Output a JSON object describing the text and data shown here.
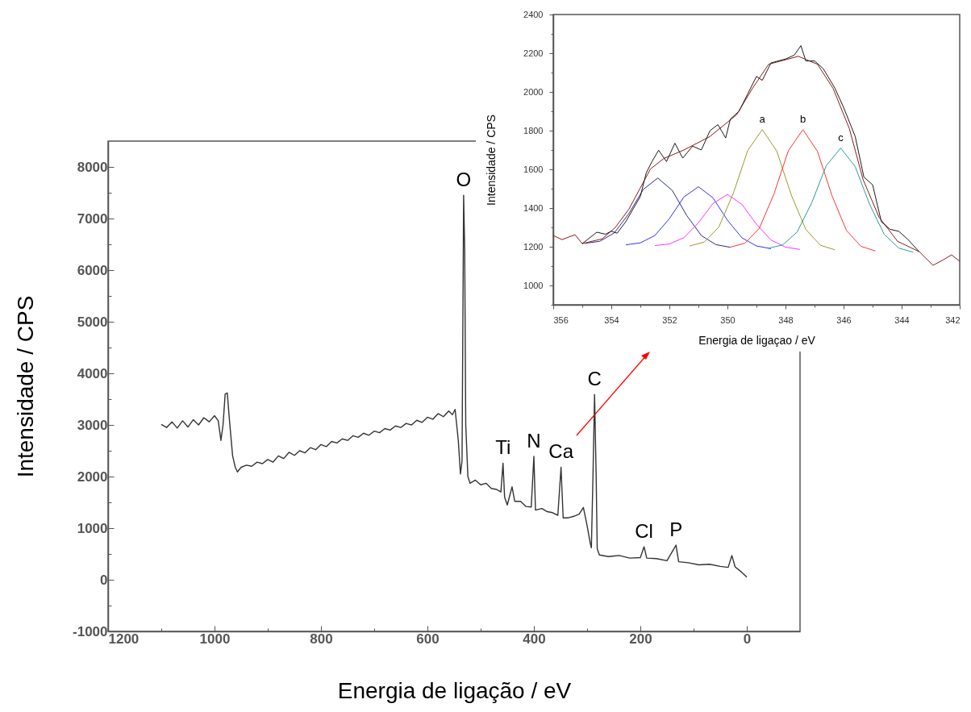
{
  "chart_data": [
    {
      "type": "line",
      "xlabel": "Energia de ligação / eV",
      "ylabel": "Intensidade / CPS",
      "xlim": [
        1200,
        -100
      ],
      "ylim": [
        -1000,
        8500
      ],
      "xticks": [
        1200,
        {
          "value": 1100,
          "label": null
        },
        1000,
        {
          "value": 900,
          "label": null
        },
        800,
        {
          "value": 700,
          "label": null
        },
        600,
        {
          "value": 500,
          "label": null
        },
        400,
        {
          "value": 300,
          "label": null
        },
        200,
        {
          "value": 100,
          "label": null
        },
        0
      ],
      "yticks": [
        -1000,
        {
          "value": -500,
          "label": null
        },
        0,
        {
          "value": 500,
          "label": null
        },
        1000,
        {
          "value": 1500,
          "label": null
        },
        2000,
        {
          "value": 2500,
          "label": null
        },
        3000,
        {
          "value": 3500,
          "label": null
        },
        4000,
        {
          "value": 4500,
          "label": null
        },
        5000,
        {
          "value": 5500,
          "label": null
        },
        6000,
        {
          "value": 6500,
          "label": null
        },
        7000,
        {
          "value": 7500,
          "label": null
        },
        8000
      ],
      "annotations": [
        {
          "text": "O",
          "x": 532,
          "y": 7450
        },
        {
          "text": "Ti",
          "x": 458,
          "y": 2260
        },
        {
          "text": "N",
          "x": 400,
          "y": 2390
        },
        {
          "text": "Ca",
          "x": 349,
          "y": 2180
        },
        {
          "text": "C",
          "x": 286,
          "y": 3590
        },
        {
          "text": "Cl",
          "x": 193,
          "y": 640
        },
        {
          "text": "P",
          "x": 133,
          "y": 670
        }
      ],
      "series": [
        {
          "color": "#333333",
          "x": [
            1100,
            1090,
            1080,
            1070,
            1060,
            1050,
            1040,
            1030,
            1020,
            1010,
            1000,
            993,
            988,
            984,
            980,
            976,
            972,
            966,
            961,
            957,
            950,
            940,
            930,
            920,
            910,
            900,
            890,
            880,
            870,
            860,
            850,
            840,
            830,
            820,
            810,
            800,
            790,
            780,
            770,
            760,
            750,
            740,
            730,
            720,
            710,
            700,
            690,
            680,
            670,
            660,
            650,
            640,
            630,
            620,
            610,
            600,
            590,
            580,
            570,
            560,
            553,
            548,
            542,
            538,
            535,
            533,
            532,
            530,
            528,
            524,
            520,
            510,
            500,
            490,
            480,
            470,
            462,
            458,
            455,
            450,
            441,
            436,
            425,
            415,
            405,
            400,
            397,
            385,
            375,
            365,
            355,
            349,
            345,
            335,
            325,
            315,
            307,
            300,
            294,
            292,
            289,
            286,
            283,
            281,
            277,
            260,
            240,
            220,
            200,
            193,
            188,
            170,
            150,
            133,
            128,
            110,
            90,
            70,
            50,
            35,
            28,
            22,
            10,
            0
          ],
          "values": [
            3010,
            2950,
            3060,
            2940,
            3080,
            2960,
            3100,
            3000,
            3140,
            3060,
            3180,
            3080,
            2700,
            3000,
            3600,
            3620,
            3100,
            2400,
            2180,
            2090,
            2180,
            2220,
            2200,
            2280,
            2250,
            2330,
            2280,
            2400,
            2350,
            2470,
            2410,
            2500,
            2460,
            2560,
            2520,
            2620,
            2580,
            2680,
            2650,
            2730,
            2700,
            2790,
            2760,
            2840,
            2800,
            2880,
            2850,
            2930,
            2900,
            2980,
            2950,
            3030,
            3000,
            3090,
            3050,
            3150,
            3110,
            3220,
            3160,
            3270,
            3200,
            3300,
            2700,
            2050,
            2300,
            5700,
            7450,
            6400,
            3000,
            2000,
            1870,
            1930,
            1840,
            1870,
            1770,
            1750,
            1700,
            2260,
            1600,
            1450,
            1800,
            1520,
            1520,
            1420,
            1410,
            2390,
            1350,
            1380,
            1320,
            1300,
            1250,
            2180,
            1200,
            1200,
            1230,
            1270,
            1400,
            1050,
            700,
            620,
            2000,
            3590,
            2000,
            600,
            480,
            450,
            470,
            420,
            430,
            640,
            420,
            410,
            370,
            670,
            350,
            330,
            290,
            300,
            260,
            240,
            470,
            250,
            150,
            50
          ]
        }
      ]
    },
    {
      "type": "line",
      "xlabel": "Energia de ligaçao / eV",
      "ylabel": "Intensidade / CPS",
      "xlim": [
        356,
        342
      ],
      "ylim": [
        900,
        2400
      ],
      "xticks": [
        356,
        {
          "value": 355,
          "label": null
        },
        354,
        {
          "value": 353,
          "label": null
        },
        352,
        {
          "value": 351,
          "label": null
        },
        350,
        {
          "value": 349,
          "label": null
        },
        348,
        {
          "value": 347,
          "label": null
        },
        346,
        {
          "value": 345,
          "label": null
        },
        344,
        {
          "value": 343,
          "label": null
        },
        342
      ],
      "yticks": [
        {
          "value": 900,
          "label": null
        },
        1000,
        {
          "value": 1100,
          "label": null
        },
        1200,
        {
          "value": 1300,
          "label": null
        },
        1400,
        {
          "value": 1500,
          "label": null
        },
        1600,
        {
          "value": 1700,
          "label": null
        },
        1800,
        {
          "value": 1900,
          "label": null
        },
        2000,
        {
          "value": 2100,
          "label": null
        },
        2200,
        {
          "value": 2300,
          "label": null
        },
        2400
      ],
      "annotations": [
        {
          "text": "a",
          "x": 348.8,
          "y": 1805
        },
        {
          "text": "b",
          "x": 347.4,
          "y": 1805
        },
        {
          "text": "c",
          "x": 346.1,
          "y": 1710
        }
      ],
      "series": [
        {
          "color": "#2a2a8a",
          "x": [
            354.9,
            354.4,
            353.9,
            353.4,
            352.9,
            352.4,
            351.9,
            351.4,
            350.9,
            350.4,
            349.9
          ],
          "values": [
            1218,
            1228,
            1271,
            1370,
            1496,
            1555,
            1491,
            1361,
            1258,
            1211,
            1197
          ]
        },
        {
          "color": "#3333ff",
          "x": [
            353.5,
            353.0,
            352.5,
            352.0,
            351.5,
            351.0,
            350.5,
            350.0,
            349.5,
            349.0,
            348.5
          ],
          "values": [
            1210,
            1220,
            1258,
            1345,
            1457,
            1510,
            1453,
            1337,
            1246,
            1204,
            1190
          ]
        },
        {
          "color": "#ff33ff",
          "x": [
            352.5,
            352.0,
            351.5,
            351.0,
            350.5,
            350.0,
            349.5,
            349.0,
            348.5,
            348.0,
            347.5
          ],
          "values": [
            1206,
            1214,
            1247,
            1324,
            1423,
            1470,
            1419,
            1316,
            1235,
            1198,
            1186
          ]
        },
        {
          "color": "#9a9a30",
          "x": [
            351.3,
            350.8,
            350.3,
            349.8,
            349.3,
            348.8,
            348.3,
            347.8,
            347.3,
            346.8,
            346.3
          ],
          "values": [
            1204,
            1224,
            1301,
            1475,
            1698,
            1805,
            1694,
            1467,
            1289,
            1208,
            1184
          ]
        },
        {
          "color": "#ff3333",
          "x": [
            349.9,
            349.4,
            348.9,
            348.4,
            347.9,
            347.4,
            346.9,
            346.4,
            345.9,
            345.4,
            344.9
          ],
          "values": [
            1198,
            1218,
            1296,
            1472,
            1697,
            1805,
            1693,
            1464,
            1284,
            1202,
            1178
          ]
        },
        {
          "color": "#2a9a9a",
          "x": [
            348.6,
            348.1,
            347.6,
            347.1,
            346.6,
            346.1,
            345.6,
            345.1,
            344.6,
            344.1,
            343.6
          ],
          "values": [
            1192,
            1209,
            1276,
            1426,
            1618,
            1710,
            1614,
            1418,
            1264,
            1193,
            1172
          ]
        },
        {
          "color": "#8b1a1a",
          "x": [
            356,
            355.7,
            355.25,
            355,
            354.31,
            353.86,
            353.39,
            352.65,
            352.19,
            351.5,
            350.61,
            349.69,
            349.14,
            348.58,
            347.56,
            346.9,
            346.36,
            345.8,
            345.33,
            344.78,
            344.14,
            343.39,
            342.92,
            342.56,
            342.28,
            342
          ],
          "values": [
            1258,
            1237,
            1262,
            1216,
            1241,
            1300,
            1395,
            1602,
            1656,
            1700,
            1769,
            1881,
            2018,
            2143,
            2184,
            2143,
            2018,
            1810,
            1548,
            1353,
            1228,
            1174,
            1104,
            1133,
            1158,
            1125
          ]
        },
        {
          "color": "#1a1a1a",
          "x": [
            355.0,
            354.5,
            354.2,
            354.0,
            353.8,
            353.5,
            353.0,
            352.8,
            352.6,
            352.37,
            352.1,
            351.81,
            351.54,
            351.2,
            350.9,
            350.6,
            350.33,
            350.06,
            349.9,
            349.6,
            349.3,
            349.0,
            348.8,
            348.5,
            348.0,
            347.7,
            347.47,
            347.3,
            347.0,
            346.7,
            346.3,
            346.0,
            345.6,
            345.3,
            345.0,
            344.7,
            344.4,
            344.1,
            343.8,
            343.4
          ],
          "values": [
            1216,
            1275,
            1265,
            1280,
            1270,
            1330,
            1460,
            1580,
            1640,
            1699,
            1640,
            1735,
            1658,
            1720,
            1700,
            1800,
            1831,
            1762,
            1860,
            1900,
            1990,
            2080,
            2060,
            2150,
            2170,
            2190,
            2239,
            2160,
            2160,
            2120,
            2020,
            1920,
            1770,
            1560,
            1520,
            1330,
            1290,
            1280,
            1240,
            1175
          ]
        }
      ]
    }
  ]
}
